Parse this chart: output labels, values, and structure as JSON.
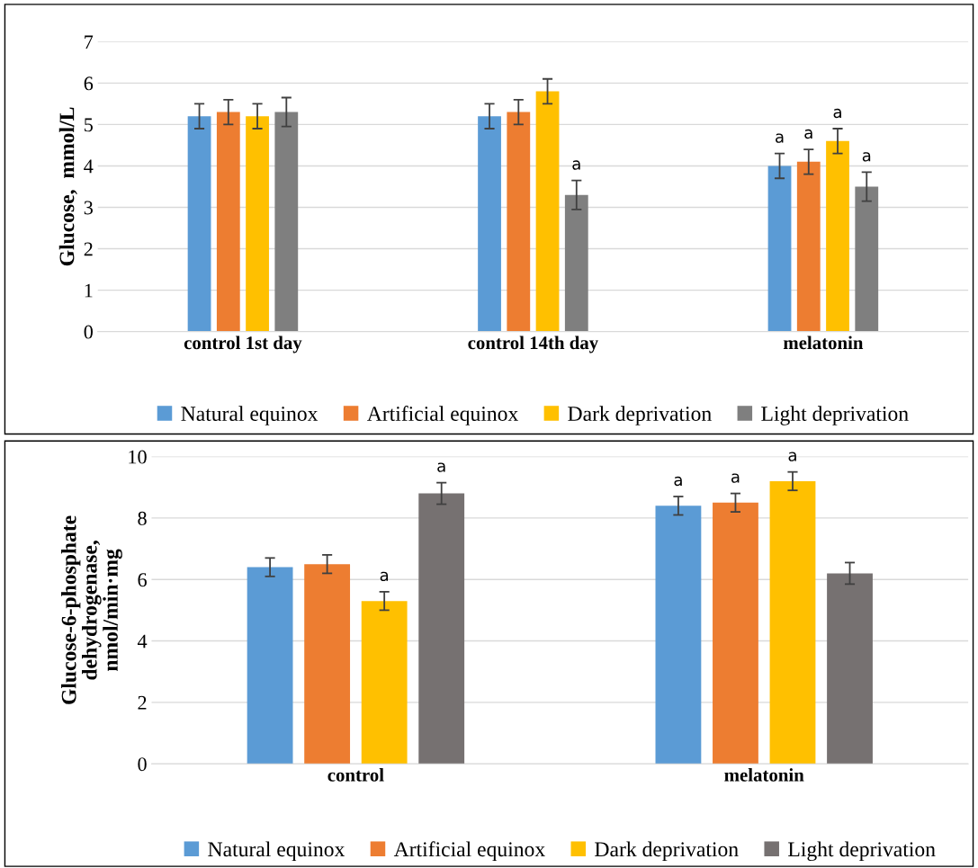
{
  "chart_data": [
    {
      "type": "bar",
      "ylabel": "Glucose,  mmol/L",
      "categories": [
        "control 1st day",
        "control 14th day",
        "melatonin"
      ],
      "series": [
        {
          "name": "Natural equinox",
          "color": "#5b9bd5",
          "values": [
            5.2,
            5.2,
            4.0
          ],
          "errors": [
            0.3,
            0.3,
            0.3
          ],
          "value_labels": [
            null,
            null,
            "a"
          ]
        },
        {
          "name": "Artificial equinox",
          "color": "#ed7d31",
          "values": [
            5.3,
            5.3,
            4.1
          ],
          "errors": [
            0.3,
            0.3,
            0.3
          ],
          "value_labels": [
            null,
            null,
            "a"
          ]
        },
        {
          "name": "Dark deprivation",
          "color": "#ffc000",
          "values": [
            5.2,
            5.8,
            4.6
          ],
          "errors": [
            0.3,
            0.3,
            0.3
          ],
          "value_labels": [
            null,
            null,
            "a"
          ]
        },
        {
          "name": "Light deprivation",
          "color": "#7f7f7f",
          "values": [
            5.3,
            3.3,
            3.5
          ],
          "errors": [
            0.35,
            0.35,
            0.35
          ],
          "value_labels": [
            null,
            "a",
            "a"
          ]
        }
      ],
      "ylim": [
        0,
        7
      ],
      "yticks": [
        0,
        1,
        2,
        3,
        4,
        5,
        6,
        7
      ],
      "grid": "y",
      "legend": "bottom"
    },
    {
      "type": "bar",
      "ylabel": "Glucose-6-phosphate\ndehydrogenase,\nnmol/min·mg",
      "categories": [
        "control",
        "melatonin"
      ],
      "series": [
        {
          "name": "Natural equinox",
          "color": "#5b9bd5",
          "values": [
            6.4,
            8.4
          ],
          "errors": [
            0.3,
            0.3
          ],
          "value_labels": [
            null,
            "a"
          ]
        },
        {
          "name": "Artificial equinox",
          "color": "#ed7d31",
          "values": [
            6.5,
            8.5
          ],
          "errors": [
            0.3,
            0.3
          ],
          "value_labels": [
            null,
            "a"
          ]
        },
        {
          "name": "Dark deprivation",
          "color": "#ffc000",
          "values": [
            5.3,
            9.2
          ],
          "errors": [
            0.3,
            0.3
          ],
          "value_labels": [
            "a",
            "a"
          ]
        },
        {
          "name": "Light deprivation",
          "color": "#767171",
          "values": [
            8.8,
            6.2
          ],
          "errors": [
            0.35,
            0.35
          ],
          "value_labels": [
            "a",
            null
          ]
        }
      ],
      "ylim": [
        0,
        10
      ],
      "yticks": [
        0,
        2,
        4,
        6,
        8,
        10
      ],
      "grid": "y",
      "legend": "bottom"
    }
  ]
}
